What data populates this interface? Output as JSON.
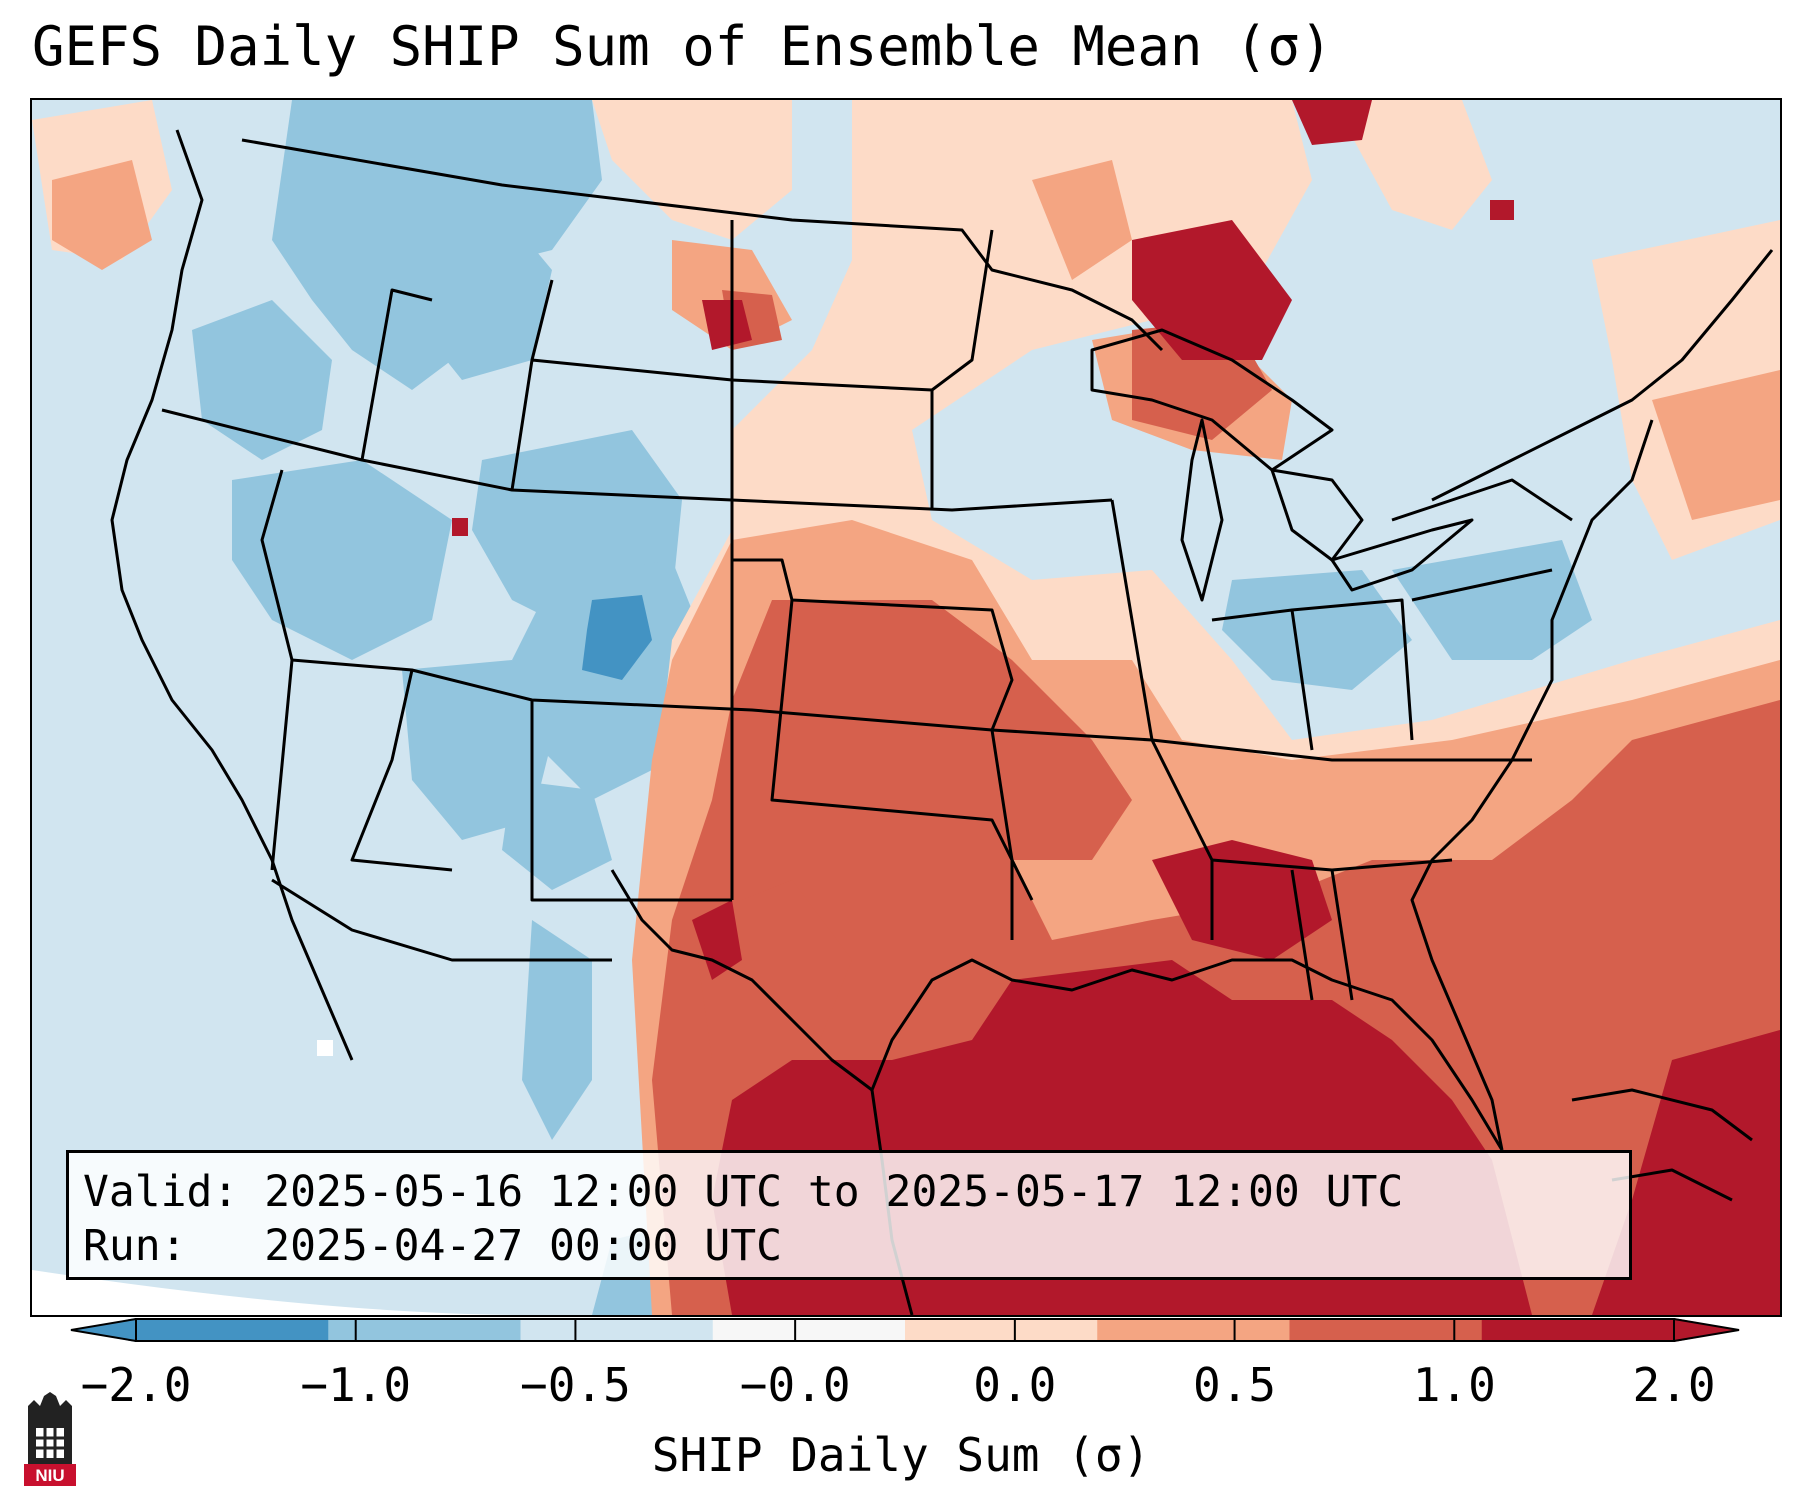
{
  "title": "GEFS Daily SHIP Sum of Ensemble Mean (σ)",
  "info": {
    "valid_label": "Valid:",
    "valid_value": "2025-05-16 12:00 UTC to 2025-05-17 12:00 UTC",
    "run_label": "Run:",
    "run_value": "2025-04-27 00:00 UTC"
  },
  "colorbar": {
    "label": "SHIP Daily Sum (σ)",
    "ticks": [
      "−2.0",
      "−1.0",
      "−0.5",
      "−0.0",
      "0.0",
      "0.5",
      "1.0",
      "2.0"
    ],
    "colors": [
      "#4393c3",
      "#92c5de",
      "#d1e5f0",
      "#f7f7f7",
      "#fddbc7",
      "#f4a582",
      "#d6604d",
      "#b2182b"
    ],
    "extend": "both"
  },
  "logo": {
    "text": "NIU"
  }
}
